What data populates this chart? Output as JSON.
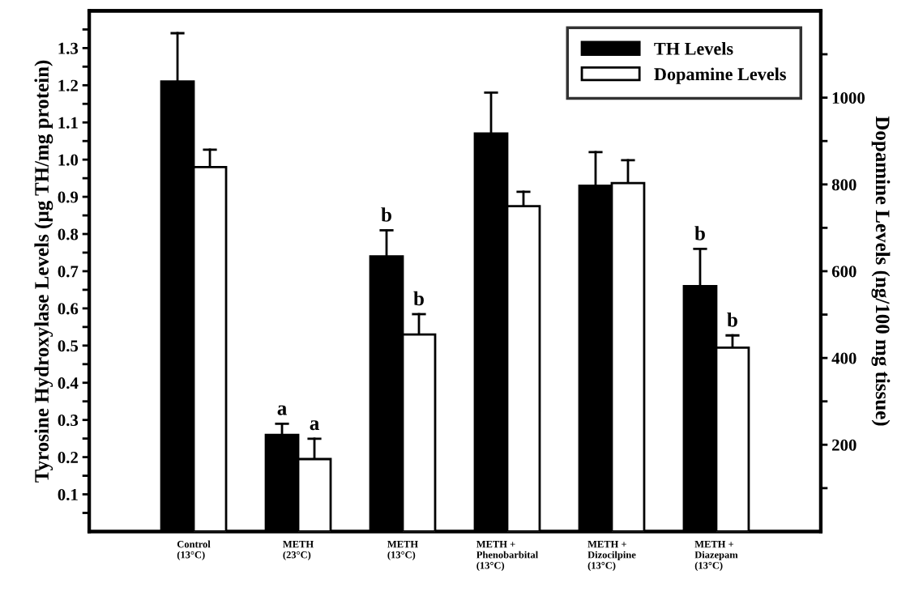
{
  "chart_data": {
    "type": "bar",
    "categories": [
      "Control\n(13°C)",
      "METH\n(23°C)",
      "METH\n(13°C)",
      "METH +\nPhenobarbital\n(13°C)",
      "METH +\nDizocilpine\n(13°C)",
      "METH +\nDiazepam\n(13°C)"
    ],
    "ylabel": "Tyrosine Hydroxylase Levels (µg TH/mg protein)",
    "y2label": "Dopamine Levels (ng/100 mg tissue)",
    "ylim": [
      0,
      1.4
    ],
    "yticks": [
      {
        "value": 0.05,
        "label": null
      },
      0.1,
      {
        "value": 0.15,
        "label": null
      },
      0.2,
      {
        "value": 0.25,
        "label": null
      },
      0.3,
      {
        "value": 0.35,
        "label": null
      },
      0.4,
      {
        "value": 0.45,
        "label": null
      },
      0.5,
      {
        "value": 0.55,
        "label": null
      },
      0.6,
      {
        "value": 0.65,
        "label": null
      },
      0.7,
      {
        "value": 0.75,
        "label": null
      },
      0.8,
      {
        "value": 0.85,
        "label": null
      },
      0.9,
      {
        "value": 0.95,
        "label": null
      },
      {
        "value": 1.0,
        "label": "1.0"
      },
      {
        "value": 1.05,
        "label": null
      },
      1.1,
      {
        "value": 1.15,
        "label": null
      },
      1.2,
      {
        "value": 1.25,
        "label": null
      },
      1.3,
      {
        "value": 1.35,
        "label": null
      }
    ],
    "y2lim": [
      0,
      1200
    ],
    "y2ticks": [
      {
        "value": 100,
        "label": null
      },
      200,
      {
        "value": 300,
        "label": null
      },
      400,
      {
        "value": 500,
        "label": null
      },
      600,
      {
        "value": 700,
        "label": null
      },
      800,
      {
        "value": 900,
        "label": null
      },
      1000,
      {
        "value": 1100,
        "label": null
      }
    ],
    "series": [
      {
        "name": "TH Levels",
        "color": "#000000",
        "values": [
          1.21,
          0.26,
          0.74,
          1.07,
          0.93,
          0.66
        ],
        "value_labels": [
          null,
          "a",
          "b",
          null,
          null,
          "b"
        ],
        "errors": [
          [
            1.21,
            1.34
          ],
          [
            0.26,
            0.29
          ],
          [
            0.74,
            0.81
          ],
          [
            1.07,
            1.18
          ],
          [
            0.93,
            1.02
          ],
          [
            0.66,
            0.76
          ]
        ]
      },
      {
        "name": "Dopamine Levels",
        "color": "#ffffff",
        "axis": "y2",
        "values": [
          840,
          167,
          454,
          750,
          803,
          424
        ],
        "value_labels": [
          null,
          "a",
          "b",
          null,
          null,
          "b"
        ],
        "errors": [
          [
            840,
            880
          ],
          [
            167,
            214
          ],
          [
            454,
            501
          ],
          [
            750,
            783
          ],
          [
            803,
            856
          ],
          [
            424,
            452
          ]
        ]
      }
    ],
    "legend": "top right",
    "grid": false
  }
}
